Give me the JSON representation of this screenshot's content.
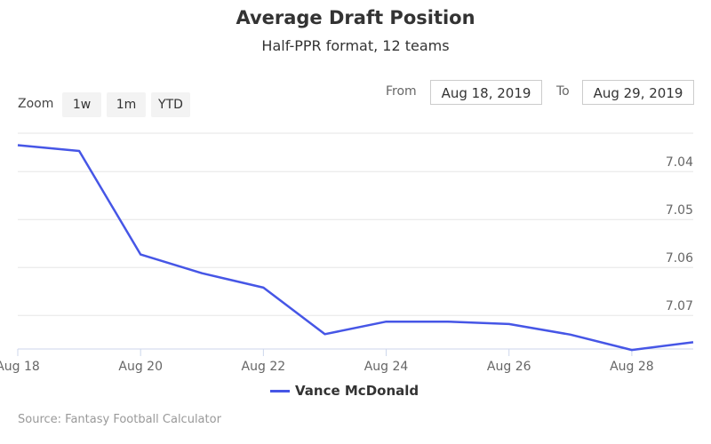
{
  "title": "Average Draft Position",
  "subtitle": "Half-PPR format, 12 teams",
  "zoom": {
    "label": "Zoom",
    "buttons": [
      "1w",
      "1m",
      "YTD"
    ]
  },
  "range": {
    "from_label": "From",
    "from_value": "Aug 18, 2019",
    "to_label": "To",
    "to_value": "Aug 29, 2019"
  },
  "source": "Source: Fantasy Football Calculator",
  "colors": {
    "series": "#4656e6",
    "grid": "#e6e6e6",
    "axis": "#ccd6eb",
    "text": "#666666"
  },
  "chart_data": {
    "type": "line",
    "xlabel": "",
    "ylabel": "",
    "y_reversed": true,
    "ylim": [
      7.032,
      7.077
    ],
    "xlim": [
      "2019-08-18",
      "2019-08-29"
    ],
    "x_ticks": [
      "Aug 18",
      "Aug 20",
      "Aug 22",
      "Aug 24",
      "Aug 26",
      "Aug 28"
    ],
    "x_tick_dates": [
      "2019-08-18",
      "2019-08-20",
      "2019-08-22",
      "2019-08-24",
      "2019-08-26",
      "2019-08-28"
    ],
    "y_ticks": [
      7.04,
      7.05,
      7.06,
      7.07
    ],
    "y_tick_labels": [
      "7.04",
      "7.05",
      "7.06",
      "7.07"
    ],
    "grid": true,
    "legend_position": "bottom-center",
    "series": [
      {
        "name": "Vance McDonald",
        "x": [
          "2019-08-18",
          "2019-08-19",
          "2019-08-20",
          "2019-08-21",
          "2019-08-22",
          "2019-08-23",
          "2019-08-24",
          "2019-08-25",
          "2019-08-26",
          "2019-08-27",
          "2019-08-28",
          "2019-08-29"
        ],
        "values": [
          7.0345,
          7.0357,
          7.0573,
          7.0612,
          7.0642,
          7.0739,
          7.0713,
          7.0713,
          7.0718,
          7.074,
          7.0772,
          7.0756
        ]
      }
    ]
  }
}
